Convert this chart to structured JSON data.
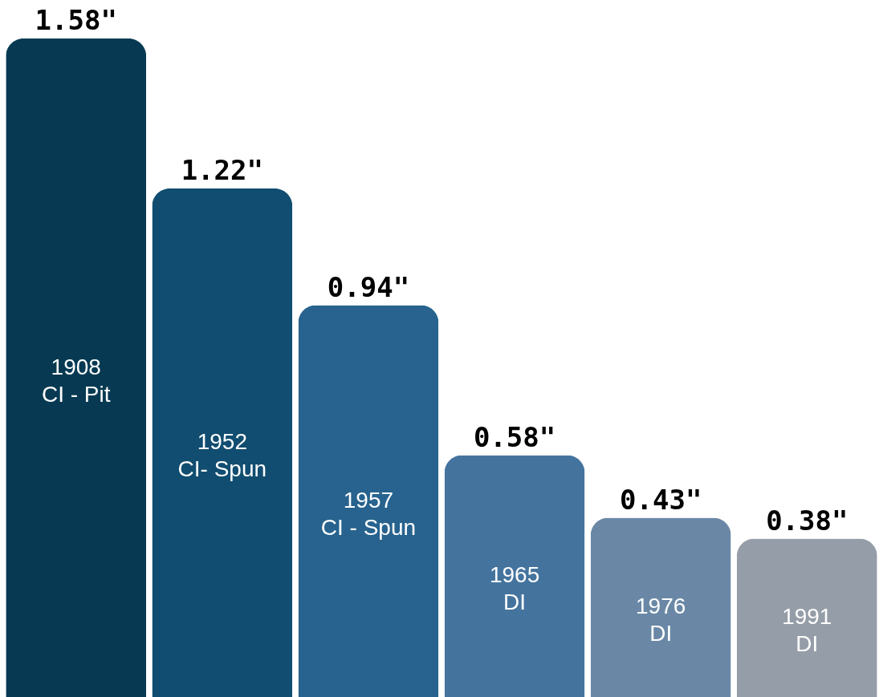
{
  "chart_data": {
    "type": "bar",
    "categories": [
      "1908\nCI - Pit",
      "1952\nCI- Spun",
      "1957\nCI - Spun",
      "1965\nDI",
      "1976\nDI",
      "1991\nDI"
    ],
    "values": [
      1.58,
      1.22,
      0.94,
      0.58,
      0.43,
      0.38
    ],
    "value_labels": [
      "1.58\"",
      "1.22\"",
      "0.94\"",
      "0.58\"",
      "0.43\"",
      "0.38\""
    ],
    "colors": [
      "#073a52",
      "#114d70",
      "#27638e",
      "#44749e",
      "#6a88a6",
      "#959da8"
    ],
    "tick_labels": false
  }
}
